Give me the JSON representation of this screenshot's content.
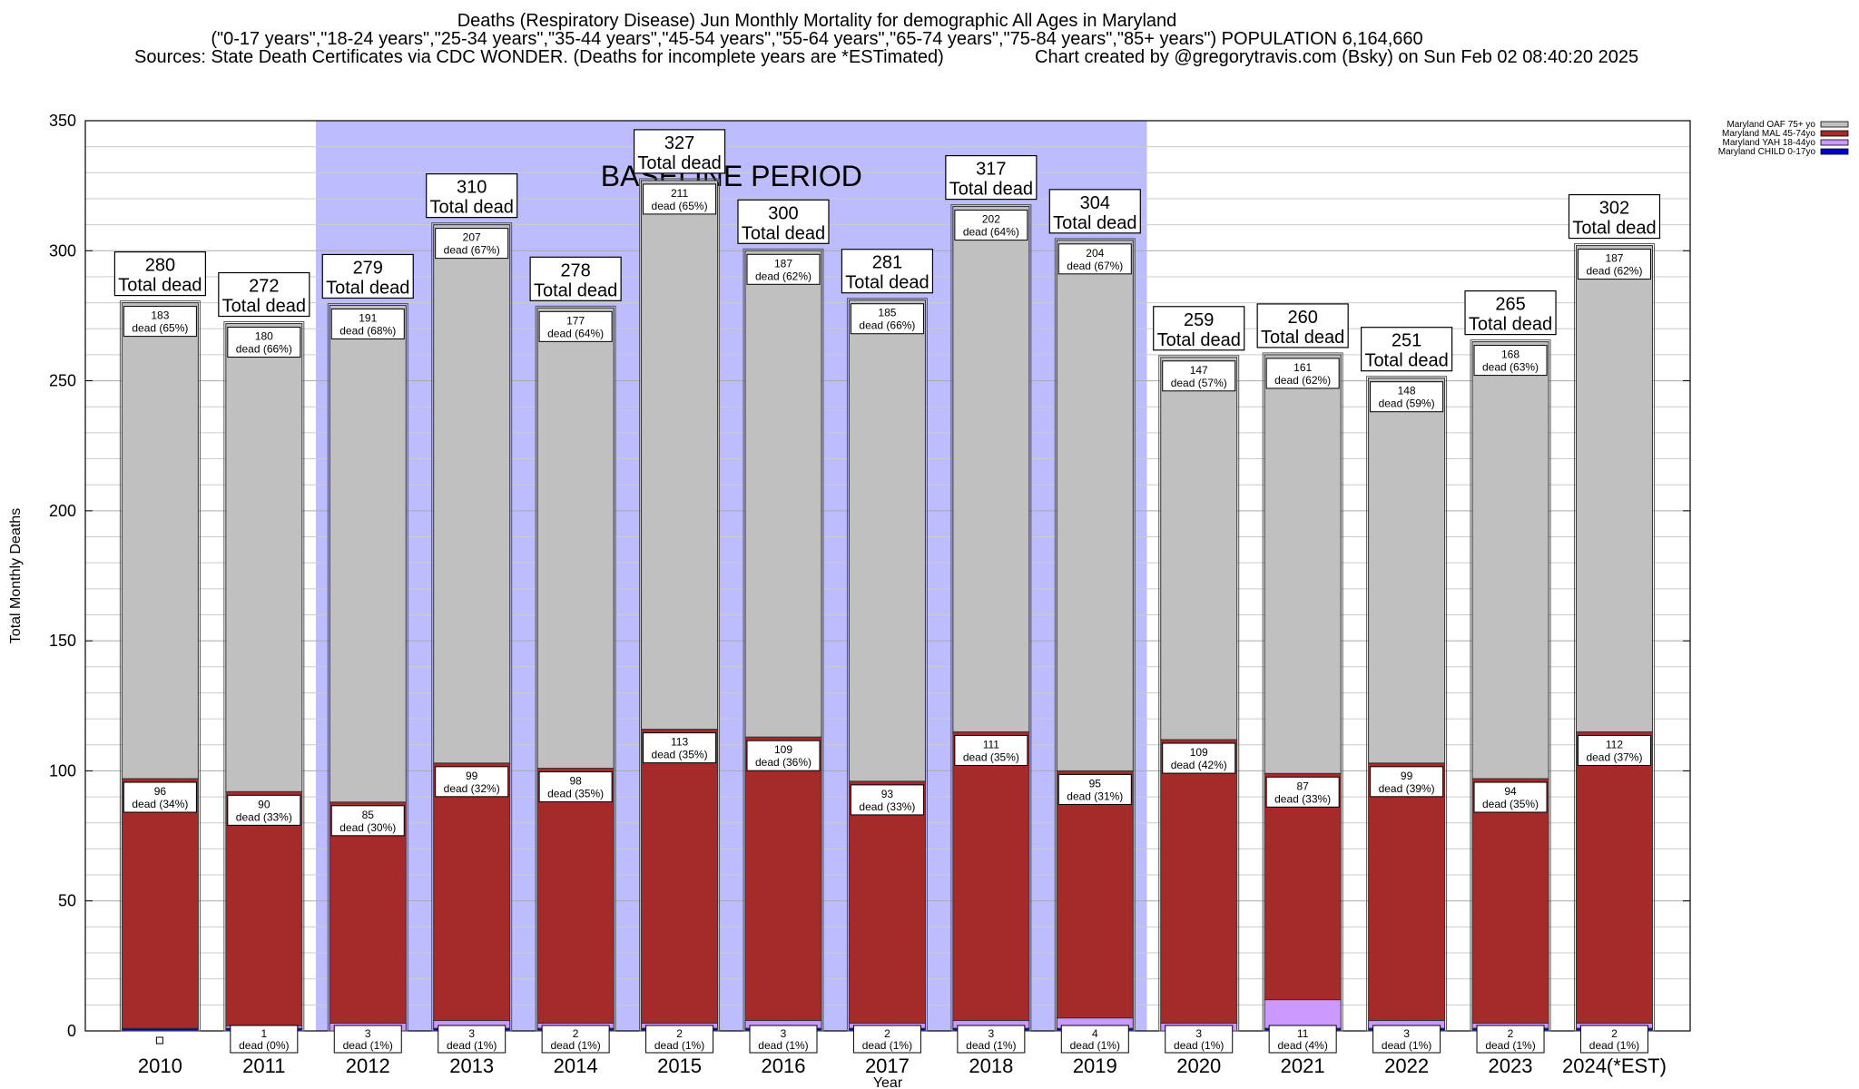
{
  "titles": {
    "line1": "Deaths (Respiratory Disease) Jun Monthly Mortality for demographic All Ages in Maryland",
    "line2": "(\"0-17 years\",\"18-24 years\",\"25-34 years\",\"35-44 years\",\"45-54 years\",\"55-64 years\",\"65-74 years\",\"75-84 years\",\"85+ years\") POPULATION 6,164,660",
    "line3": "Sources: State Death Certificates via CDC WONDER. (Deaths for incomplete years are *ESTimated)",
    "line4": "Chart created by @gregorytravis.com (Bsky) on Sun Feb 02 08:40:20 2025"
  },
  "chart_data": {
    "type": "bar",
    "stacked": true,
    "xlabel": "Year",
    "ylabel": "Total Monthly Deaths",
    "ylim": [
      0,
      350
    ],
    "yticks": [
      0,
      50,
      100,
      150,
      200,
      250,
      300,
      350
    ],
    "grid": true,
    "legend_placement": "top-right",
    "baseline_label": "BASELINE PERIOD",
    "baseline_range": [
      "2012",
      "2019"
    ],
    "baseline_color": "#bcbcff",
    "total_suffix": "Total dead",
    "categories": [
      "2010",
      "2011",
      "2012",
      "2013",
      "2014",
      "2015",
      "2016",
      "2017",
      "2018",
      "2019",
      "2020",
      "2021",
      "2022",
      "2023",
      "2024(*EST)"
    ],
    "totals": [
      280,
      272,
      279,
      310,
      278,
      327,
      300,
      281,
      317,
      304,
      259,
      260,
      251,
      265,
      302
    ],
    "series": [
      {
        "name": "Maryland CHILD 0-17yo",
        "color": "#0000cc",
        "values": [
          1,
          1,
          0,
          1,
          1,
          1,
          1,
          1,
          1,
          1,
          0,
          1,
          1,
          1,
          1
        ],
        "labels": [
          "",
          "",
          "",
          "",
          "",
          "",
          "",
          "",
          "",
          "",
          "",
          "",
          "",
          "",
          ""
        ]
      },
      {
        "name": "Maryland YAH 18-44yo",
        "color": "#cc99ff",
        "values": [
          0,
          1,
          3,
          3,
          2,
          2,
          3,
          2,
          3,
          4,
          3,
          11,
          3,
          2,
          2
        ],
        "labels": [
          "",
          "1\ndead (0%)",
          "3\ndead (1%)",
          "3\ndead (1%)",
          "2\ndead (1%)",
          "2\ndead (1%)",
          "3\ndead (1%)",
          "2\ndead (1%)",
          "3\ndead (1%)",
          "4\ndead (1%)",
          "3\ndead (1%)",
          "11\ndead (4%)",
          "3\ndead (1%)",
          "2\ndead (1%)",
          "2\ndead (1%)"
        ]
      },
      {
        "name": "Maryland MAL 45-74yo",
        "color": "#a52a2a",
        "values": [
          96,
          90,
          85,
          99,
          98,
          113,
          109,
          93,
          111,
          95,
          109,
          87,
          99,
          94,
          112
        ],
        "labels": [
          "96\ndead (34%)",
          "90\ndead (33%)",
          "85\ndead (30%)",
          "99\ndead (32%)",
          "98\ndead (35%)",
          "113\ndead (35%)",
          "109\ndead (36%)",
          "93\ndead (33%)",
          "111\ndead (35%)",
          "95\ndead (31%)",
          "109\ndead (42%)",
          "87\ndead (33%)",
          "99\ndead (39%)",
          "94\ndead (35%)",
          "112\ndead (37%)"
        ]
      },
      {
        "name": "Maryland OAF 75+ yo",
        "color": "#c0c0c0",
        "values": [
          183,
          180,
          191,
          207,
          177,
          211,
          187,
          185,
          202,
          204,
          147,
          161,
          148,
          168,
          187
        ],
        "labels": [
          "183\ndead (65%)",
          "180\ndead (66%)",
          "191\ndead (68%)",
          "207\ndead (67%)",
          "177\ndead (64%)",
          "211\ndead (65%)",
          "187\ndead (62%)",
          "185\ndead (66%)",
          "202\ndead (64%)",
          "204\ndead (67%)",
          "147\ndead (57%)",
          "161\ndead (62%)",
          "148\ndead (59%)",
          "168\ndead (63%)",
          "187\ndead (62%)"
        ]
      }
    ],
    "legend_order": [
      "Maryland OAF 75+ yo",
      "Maryland MAL 45-74yo",
      "Maryland YAH 18-44yo",
      "Maryland CHILD 0-17yo"
    ]
  }
}
